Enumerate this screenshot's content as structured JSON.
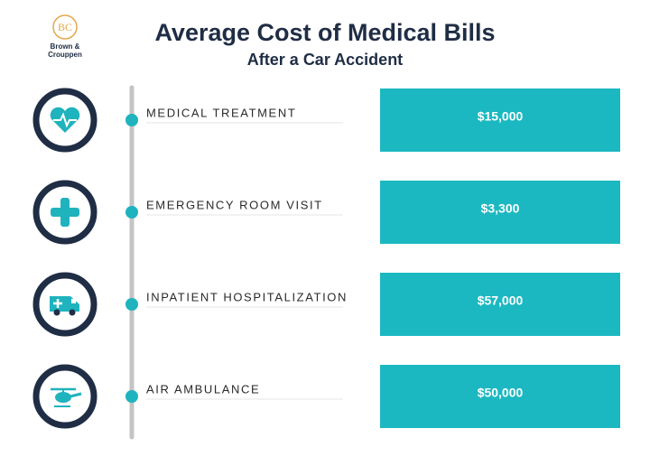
{
  "logo": {
    "initials": "BC",
    "name_line1": "Brown &",
    "name_line2": "Crouppen"
  },
  "header": {
    "title": "Average Cost of Medical Bills",
    "subtitle": "After a Car Accident"
  },
  "items": [
    {
      "label": "MEDICAL TREATMENT",
      "cost": "$15,000"
    },
    {
      "label": "EMERGENCY ROOM VISIT",
      "cost": "$3,300"
    },
    {
      "label": "INPATIENT HOSPITALIZATION",
      "cost": "$57,000"
    },
    {
      "label": "AIR AMBULANCE",
      "cost": "$50,000"
    }
  ]
}
